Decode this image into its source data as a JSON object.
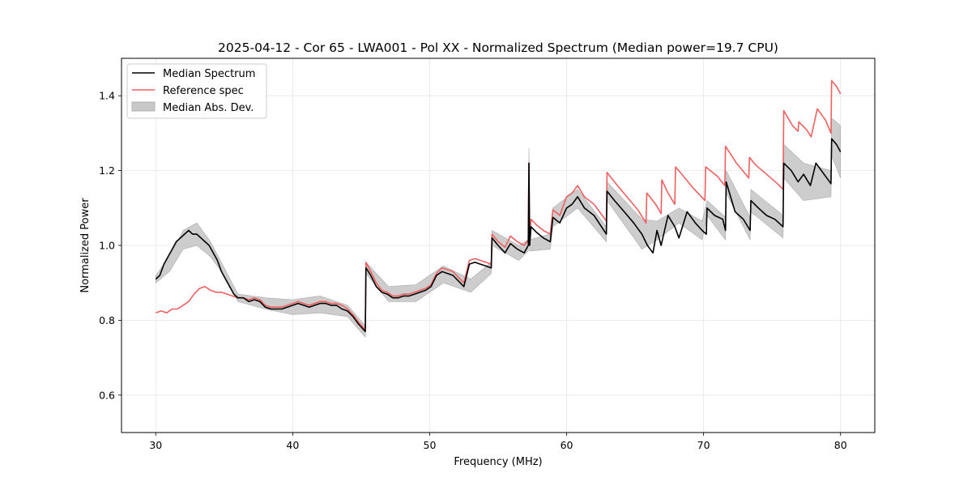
{
  "chart_data": {
    "type": "line",
    "title": "2025-04-12 - Cor 65 - LWA001 - Pol XX - Normalized Spectrum (Median power=19.7 CPU)",
    "xlabel": "Frequency (MHz)",
    "ylabel": "Normalized Power",
    "xlim": [
      27.5,
      82.5
    ],
    "ylim": [
      0.5,
      1.5
    ],
    "xticks": [
      30,
      40,
      50,
      60,
      70,
      80
    ],
    "yticks": [
      0.6,
      0.8,
      1.0,
      1.2,
      1.4
    ],
    "xtick_labels": [
      "30",
      "40",
      "50",
      "60",
      "70",
      "80"
    ],
    "ytick_labels": [
      "0.6",
      "0.8",
      "1.0",
      "1.2",
      "1.4"
    ],
    "grid": true,
    "legend_position": "top-left",
    "legend": [
      "Median Spectrum",
      "Reference spec",
      "Median Abs. Dev."
    ],
    "colors": {
      "median": "#000000",
      "reference": "#f06060",
      "mad_fill": "#c8c8c8",
      "mad_edge": "#a8a8a8"
    },
    "series": [
      {
        "name": "Median Spectrum",
        "x": [
          30.0,
          30.3,
          30.6,
          30.9,
          31.2,
          31.5,
          31.8,
          32.1,
          32.4,
          32.7,
          33.0,
          33.3,
          33.6,
          33.9,
          34.2,
          34.5,
          34.8,
          35.1,
          35.4,
          35.7,
          36.0,
          36.4,
          36.8,
          37.2,
          37.6,
          38.0,
          38.4,
          38.8,
          39.2,
          39.6,
          40.0,
          40.4,
          40.8,
          41.2,
          41.6,
          42.0,
          42.4,
          42.8,
          43.2,
          43.6,
          44.0,
          44.4,
          44.8,
          45.3,
          45.35,
          45.7,
          46.1,
          46.5,
          46.9,
          47.3,
          47.7,
          48.1,
          48.5,
          48.9,
          49.3,
          49.7,
          50.1,
          50.5,
          50.9,
          51.3,
          51.7,
          52.1,
          52.5,
          52.9,
          53.3,
          53.7,
          54.1,
          54.5,
          54.55,
          55.0,
          55.5,
          55.9,
          56.4,
          56.9,
          57.2,
          57.25,
          57.3,
          57.4,
          57.8,
          58.3,
          58.8,
          59.0,
          59.5,
          60.0,
          60.4,
          60.8,
          61.3,
          62.0,
          62.9,
          62.95,
          63.5,
          64.2,
          64.9,
          65.5,
          65.9,
          66.3,
          66.6,
          66.9,
          67.4,
          67.9,
          68.2,
          68.8,
          69.4,
          69.9,
          70.2,
          70.25,
          70.8,
          71.4,
          71.6,
          71.65,
          72.3,
          72.9,
          73.4,
          73.45,
          74.0,
          74.6,
          75.2,
          75.8,
          75.85,
          76.4,
          76.9,
          77.3,
          77.8,
          78.2,
          78.6,
          79.0,
          79.3,
          79.35,
          79.7,
          80.0
        ],
        "values": [
          0.91,
          0.92,
          0.95,
          0.97,
          0.99,
          1.01,
          1.02,
          1.03,
          1.04,
          1.03,
          1.03,
          1.02,
          1.01,
          1.0,
          0.98,
          0.96,
          0.93,
          0.91,
          0.89,
          0.87,
          0.86,
          0.86,
          0.85,
          0.855,
          0.85,
          0.835,
          0.83,
          0.83,
          0.83,
          0.835,
          0.84,
          0.845,
          0.84,
          0.835,
          0.84,
          0.845,
          0.845,
          0.84,
          0.84,
          0.83,
          0.825,
          0.81,
          0.79,
          0.77,
          0.94,
          0.92,
          0.89,
          0.875,
          0.87,
          0.86,
          0.86,
          0.865,
          0.865,
          0.87,
          0.875,
          0.88,
          0.89,
          0.92,
          0.93,
          0.925,
          0.92,
          0.905,
          0.89,
          0.95,
          0.955,
          0.95,
          0.945,
          0.94,
          1.02,
          1.0,
          0.98,
          1.005,
          0.99,
          0.98,
          1.0,
          1.22,
          1.0,
          1.05,
          1.035,
          1.02,
          1.01,
          1.075,
          1.06,
          1.1,
          1.11,
          1.13,
          1.1,
          1.08,
          1.03,
          1.145,
          1.12,
          1.09,
          1.06,
          1.03,
          1.0,
          0.98,
          1.04,
          1.0,
          1.08,
          1.05,
          1.02,
          1.09,
          1.06,
          1.04,
          1.03,
          1.1,
          1.08,
          1.07,
          1.04,
          1.17,
          1.09,
          1.07,
          1.04,
          1.12,
          1.1,
          1.08,
          1.07,
          1.05,
          1.22,
          1.2,
          1.17,
          1.19,
          1.16,
          1.22,
          1.2,
          1.18,
          1.165,
          1.285,
          1.27,
          1.25
        ]
      },
      {
        "name": "Reference spec",
        "x": [
          30.0,
          30.4,
          30.8,
          31.2,
          31.6,
          32.0,
          32.4,
          32.8,
          33.2,
          33.6,
          34.0,
          34.4,
          34.8,
          35.2,
          35.6,
          36.0,
          36.4,
          36.8,
          37.2,
          37.6,
          38.0,
          38.4,
          38.8,
          39.2,
          39.6,
          40.0,
          40.4,
          40.8,
          41.2,
          41.6,
          42.0,
          42.4,
          42.8,
          43.2,
          43.6,
          44.0,
          44.4,
          44.8,
          45.3,
          45.35,
          45.7,
          46.1,
          46.5,
          46.9,
          47.3,
          47.7,
          48.1,
          48.5,
          48.9,
          49.3,
          49.7,
          50.1,
          50.5,
          50.9,
          51.3,
          51.7,
          52.1,
          52.5,
          52.9,
          53.3,
          53.7,
          54.1,
          54.5,
          54.55,
          55.0,
          55.5,
          55.9,
          56.4,
          56.9,
          57.2,
          57.25,
          57.3,
          57.4,
          57.8,
          58.3,
          58.8,
          59.0,
          59.5,
          60.0,
          60.4,
          60.8,
          61.3,
          62.0,
          62.9,
          62.95,
          63.6,
          64.4,
          65.2,
          65.8,
          65.85,
          66.5,
          66.9,
          66.95,
          67.4,
          67.9,
          67.95,
          68.3,
          69.2,
          70.1,
          70.15,
          71.0,
          71.55,
          71.6,
          72.4,
          73.3,
          73.35,
          73.8,
          74.6,
          75.4,
          75.8,
          75.85,
          76.5,
          76.9,
          76.95,
          77.5,
          77.85,
          78.3,
          78.9,
          79.3,
          79.35,
          79.7,
          80.0
        ],
        "values": [
          0.82,
          0.825,
          0.82,
          0.83,
          0.83,
          0.84,
          0.85,
          0.87,
          0.885,
          0.89,
          0.88,
          0.875,
          0.875,
          0.87,
          0.865,
          0.86,
          0.86,
          0.855,
          0.86,
          0.855,
          0.84,
          0.835,
          0.835,
          0.835,
          0.84,
          0.845,
          0.85,
          0.845,
          0.84,
          0.845,
          0.85,
          0.85,
          0.845,
          0.845,
          0.84,
          0.83,
          0.815,
          0.795,
          0.775,
          0.955,
          0.93,
          0.9,
          0.88,
          0.875,
          0.865,
          0.865,
          0.87,
          0.87,
          0.875,
          0.88,
          0.885,
          0.895,
          0.925,
          0.94,
          0.935,
          0.93,
          0.915,
          0.9,
          0.96,
          0.965,
          0.96,
          0.955,
          0.95,
          1.03,
          1.01,
          0.995,
          1.025,
          1.01,
          1.0,
          1.015,
          1.22,
          1.02,
          1.07,
          1.055,
          1.04,
          1.03,
          1.095,
          1.08,
          1.13,
          1.14,
          1.16,
          1.13,
          1.11,
          1.065,
          1.195,
          1.165,
          1.13,
          1.095,
          1.06,
          1.14,
          1.11,
          1.085,
          1.175,
          1.14,
          1.11,
          1.21,
          1.195,
          1.155,
          1.12,
          1.21,
          1.185,
          1.16,
          1.265,
          1.22,
          1.18,
          1.235,
          1.215,
          1.19,
          1.165,
          1.15,
          1.36,
          1.32,
          1.305,
          1.33,
          1.31,
          1.29,
          1.365,
          1.335,
          1.3,
          1.44,
          1.425,
          1.405
        ]
      }
    ],
    "mad_band": {
      "name": "Median Abs. Dev.",
      "x": [
        30.0,
        31.0,
        32.0,
        33.0,
        34.0,
        35.0,
        36.0,
        38.0,
        40.0,
        42.0,
        44.0,
        45.3,
        45.35,
        47.0,
        49.0,
        51.0,
        53.0,
        54.5,
        54.55,
        56.5,
        57.2,
        57.25,
        57.3,
        58.8,
        59.0,
        60.8,
        62.9,
        62.95,
        65.5,
        66.6,
        68.2,
        69.9,
        70.25,
        71.6,
        71.65,
        73.4,
        73.45,
        75.8,
        75.85,
        77.3,
        79.3,
        79.35,
        80.0
      ],
      "lower": [
        0.9,
        0.93,
        0.99,
        1.0,
        0.97,
        0.92,
        0.85,
        0.83,
        0.815,
        0.82,
        0.81,
        0.755,
        0.925,
        0.85,
        0.85,
        0.9,
        0.875,
        0.925,
        1.0,
        0.96,
        0.985,
        1.18,
        0.985,
        0.99,
        1.05,
        1.1,
        1.01,
        1.12,
        0.99,
        1.015,
        1.06,
        1.015,
        1.08,
        1.015,
        1.14,
        1.015,
        1.09,
        1.02,
        1.18,
        1.12,
        1.13,
        1.24,
        1.18
      ],
      "upper": [
        0.92,
        0.97,
        1.04,
        1.06,
        1.01,
        0.94,
        0.87,
        0.86,
        0.855,
        0.865,
        0.84,
        0.785,
        0.955,
        0.89,
        0.895,
        0.945,
        0.91,
        0.955,
        1.04,
        1.0,
        1.015,
        1.26,
        1.015,
        1.03,
        1.1,
        1.15,
        1.05,
        1.17,
        1.07,
        1.065,
        1.1,
        1.065,
        1.12,
        1.075,
        1.2,
        1.075,
        1.15,
        1.08,
        1.27,
        1.22,
        1.2,
        1.34,
        1.32
      ]
    }
  }
}
